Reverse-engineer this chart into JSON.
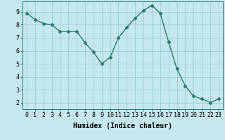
{
  "x": [
    0,
    1,
    2,
    3,
    4,
    5,
    6,
    7,
    8,
    9,
    10,
    11,
    12,
    13,
    14,
    15,
    16,
    17,
    18,
    19,
    20,
    21,
    22,
    23
  ],
  "y": [
    8.9,
    8.4,
    8.1,
    8.0,
    7.5,
    7.5,
    7.5,
    6.6,
    5.9,
    5.0,
    5.5,
    7.0,
    7.8,
    8.5,
    9.1,
    9.5,
    8.9,
    6.7,
    4.6,
    3.3,
    2.5,
    2.3,
    2.0,
    2.3
  ],
  "line_color": "#2a7a6a",
  "marker": "D",
  "markersize": 2.5,
  "linewidth": 1.0,
  "bg_color": "#c5e8ee",
  "grid_color": "#9ecdd6",
  "xlabel": "Humidex (Indice chaleur)",
  "xlabel_fontsize": 7,
  "tick_fontsize": 6,
  "ylim": [
    1.5,
    9.8
  ],
  "xlim": [
    -0.5,
    23.5
  ],
  "yticks": [
    2,
    3,
    4,
    5,
    6,
    7,
    8,
    9
  ],
  "xticks": [
    0,
    1,
    2,
    3,
    4,
    5,
    6,
    7,
    8,
    9,
    10,
    11,
    12,
    13,
    14,
    15,
    16,
    17,
    18,
    19,
    20,
    21,
    22,
    23
  ]
}
